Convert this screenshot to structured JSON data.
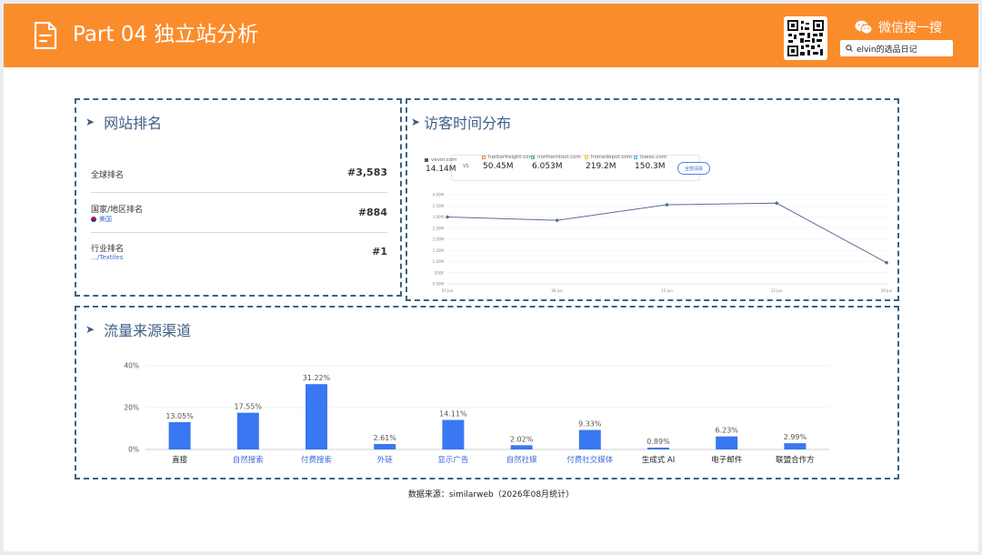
{
  "header": {
    "title": "Part 04 独立站分析",
    "wechat_label": "微信搜一搜",
    "search_value": "elvin的选品日记",
    "colors": {
      "background": "#fb8c2c",
      "text": "#ffffff"
    }
  },
  "ranking": {
    "title": "网站排名",
    "rows": [
      {
        "label": "全球排名",
        "sub": "",
        "value": "#3,583"
      },
      {
        "label": "国家/地区排名",
        "sub": "美国",
        "value": "#884"
      },
      {
        "label": "行业排名",
        "sub": "…/Textiles",
        "value": "#1"
      }
    ]
  },
  "visitors": {
    "title": "访客时间分布",
    "legend": [
      {
        "name": "vevor.com",
        "value": "14.14M",
        "color": "#3d5a8a"
      },
      {
        "name": "harborfreight.com",
        "value": "50.45M",
        "color": "#f08c3c"
      },
      {
        "name": "northerntool.com",
        "value": "6.053M",
        "color": "#3cbf86"
      },
      {
        "name": "homedepot.com",
        "value": "219.2M",
        "color": "#f5c242"
      },
      {
        "name": "lowes.com",
        "value": "150.3M",
        "color": "#3fb8e0"
      }
    ],
    "vs_label": "VS",
    "button_label": "全部清除"
  },
  "traffic": {
    "title": "流量来源渠道"
  },
  "source_note": "数据来源：similarweb（2026年08月统计）",
  "chart_data": [
    {
      "type": "line",
      "series": [
        {
          "name": "vevor.com",
          "values": [
            3000000,
            2850000,
            3550000,
            3620000,
            950000
          ]
        }
      ],
      "x": [
        "01 Jun",
        "08 Jun",
        "15 Jun",
        "22 Jun",
        "29 Jun"
      ],
      "yticks": [
        "0.00M",
        "500K",
        "1.00M",
        "1.50M",
        "2.00M",
        "2.50M",
        "3.00M",
        "3.50M",
        "4.00M"
      ],
      "ylim": [
        0,
        4000000
      ],
      "grid": true,
      "color": "#5a6f96"
    },
    {
      "type": "bar",
      "categories": [
        "直接",
        "自然搜索",
        "付费搜索",
        "外链",
        "显示广告",
        "自然社媒",
        "付费社交媒体",
        "生成式 AI",
        "电子邮件",
        "联盟合作方"
      ],
      "category_colors": [
        "#222222",
        "#3d6bd6",
        "#3d6bd6",
        "#3d6bd6",
        "#3d6bd6",
        "#3d6bd6",
        "#3d6bd6",
        "#222222",
        "#222222",
        "#222222"
      ],
      "values": [
        13.05,
        17.55,
        31.22,
        2.61,
        14.11,
        2.02,
        9.33,
        0.89,
        6.23,
        2.99
      ],
      "labels": [
        "13.05%",
        "17.55%",
        "31.22%",
        "2.61%",
        "14.11%",
        "2.02%",
        "9.33%",
        "0.89%",
        "6.23%",
        "2.99%"
      ],
      "yticks": [
        "0%",
        "20%",
        "40%"
      ],
      "ylim": [
        0,
        40
      ],
      "color": "#3a77f2"
    }
  ]
}
